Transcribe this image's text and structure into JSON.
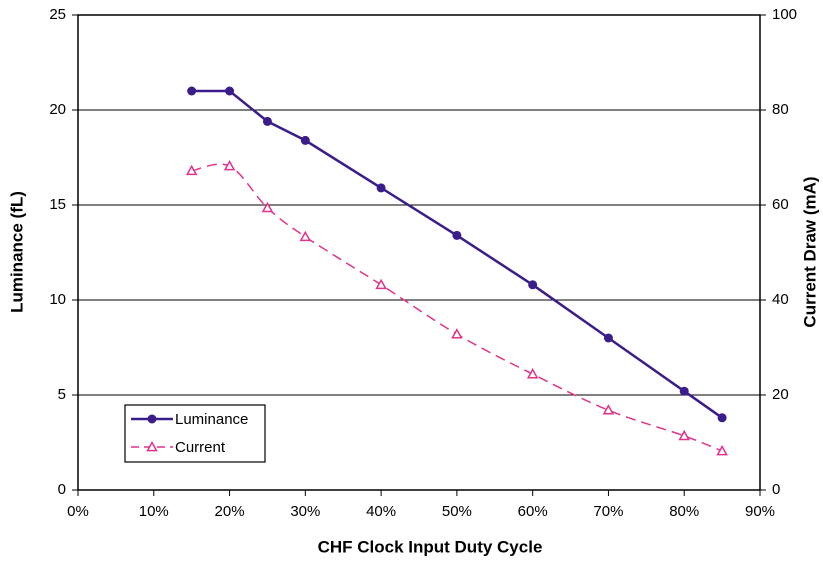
{
  "chart_data": {
    "type": "line",
    "xlabel": "CHF Clock Input Duty Cycle",
    "ylabel": "Luminance (fL)",
    "y2label": "Current Draw (mA)",
    "x": [
      15,
      20,
      25,
      30,
      40,
      50,
      60,
      70,
      80,
      85
    ],
    "series": [
      {
        "name": "Luminance",
        "color": "#3a1d8a",
        "axis": "y",
        "marker": "circle",
        "smooth": false,
        "values": [
          21,
          21,
          19.4,
          18.4,
          15.9,
          13.4,
          10.8,
          8.0,
          5.2,
          3.8
        ]
      },
      {
        "name": "Current",
        "color": "#e0338a",
        "axis": "y2",
        "marker": "triangle",
        "smooth": true,
        "dashed": true,
        "values": [
          67.2,
          68.2,
          59.4,
          53.3,
          43.2,
          32.8,
          24.4,
          16.8,
          11.4,
          8.2
        ]
      }
    ],
    "xlim": [
      0,
      90
    ],
    "xticks": [
      {
        "value": 0,
        "label": "0%"
      },
      {
        "value": 10,
        "label": "10%"
      },
      {
        "value": 20,
        "label": "20%"
      },
      {
        "value": 30,
        "label": "30%"
      },
      {
        "value": 40,
        "label": "40%"
      },
      {
        "value": 50,
        "label": "50%"
      },
      {
        "value": 60,
        "label": "60%"
      },
      {
        "value": 70,
        "label": "70%"
      },
      {
        "value": 80,
        "label": "80%"
      },
      {
        "value": 90,
        "label": "90%"
      }
    ],
    "ylim": [
      0,
      25
    ],
    "yticks": [
      0,
      5,
      10,
      15,
      20,
      25
    ],
    "y2lim": [
      0,
      100
    ],
    "y2ticks": [
      0,
      20,
      40,
      60,
      80,
      100
    ],
    "grid": true,
    "legend": "lower left"
  }
}
